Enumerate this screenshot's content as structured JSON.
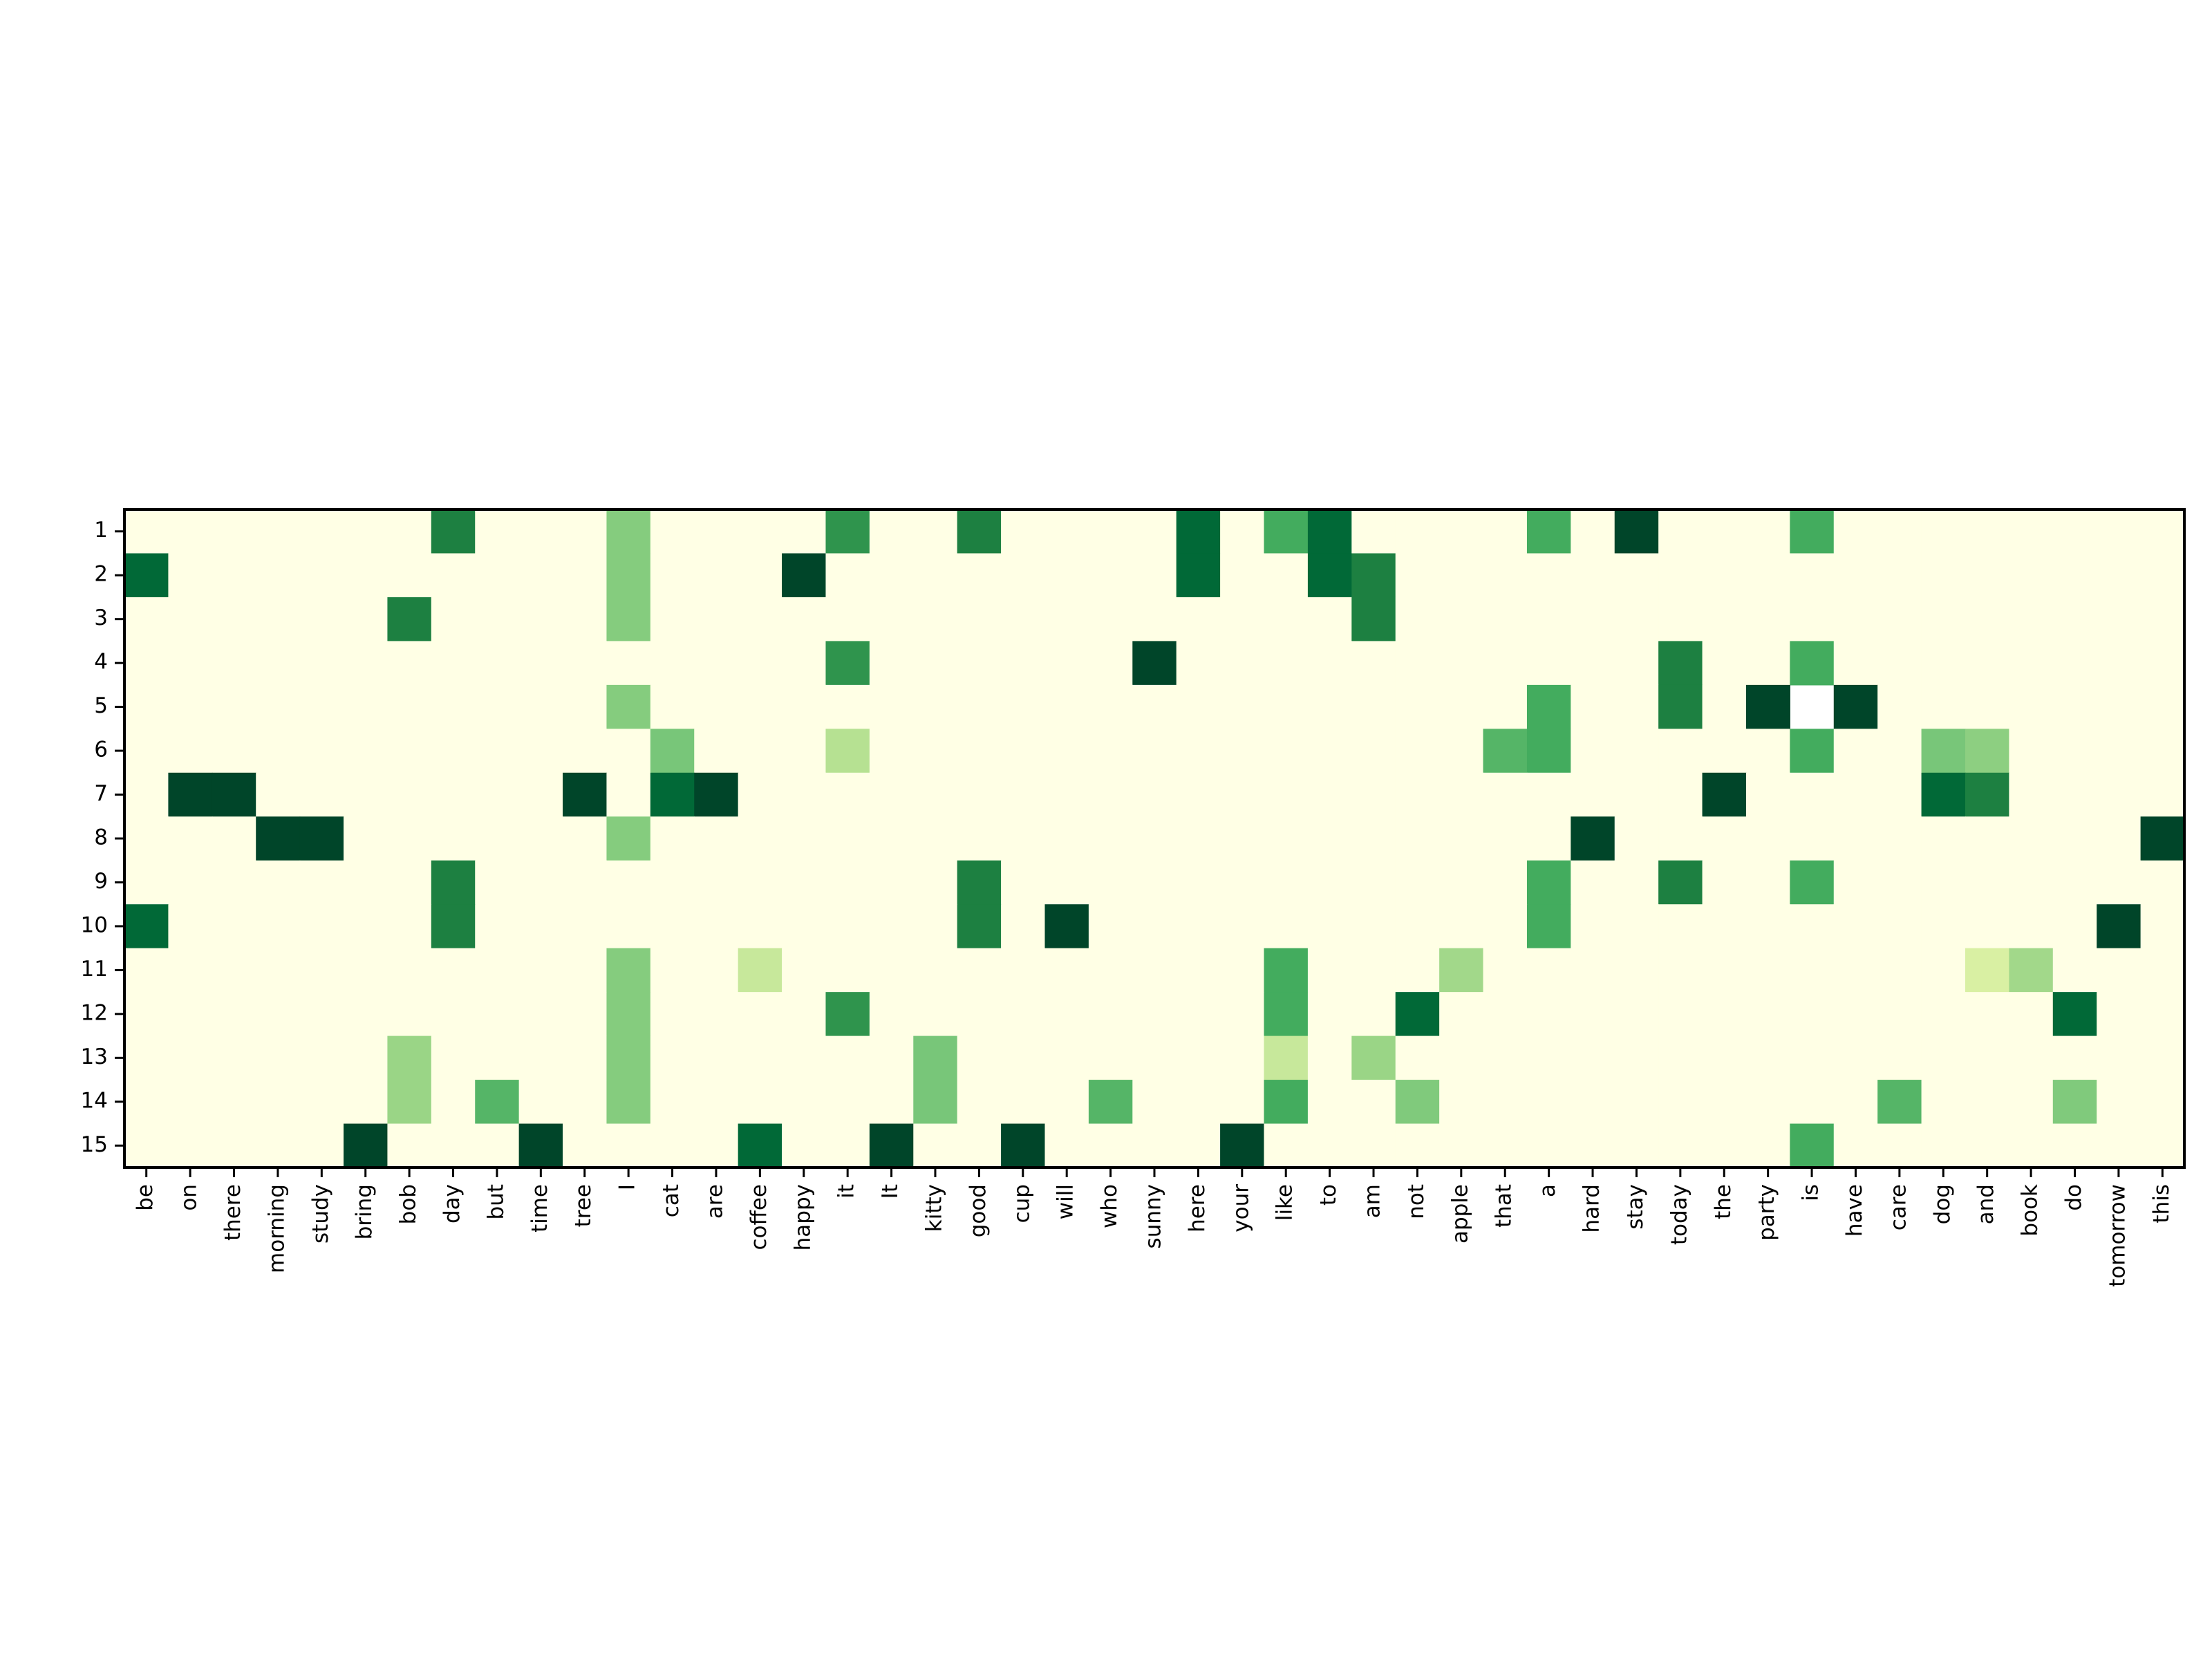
{
  "chart_data": {
    "type": "heatmap",
    "categories": [
      "be",
      "on",
      "there",
      "morning",
      "study",
      "bring",
      "bob",
      "day",
      "but",
      "time",
      "tree",
      "I",
      "cat",
      "are",
      "coffee",
      "happy",
      "it",
      "It",
      "kitty",
      "good",
      "cup",
      "will",
      "who",
      "sunny",
      "here",
      "your",
      "like",
      "to",
      "am",
      "not",
      "apple",
      "that",
      "a",
      "hard",
      "stay",
      "today",
      "the",
      "party",
      "is",
      "have",
      "care",
      "dog",
      "and",
      "book",
      "do",
      "tomorrow",
      "this"
    ],
    "rows": [
      1,
      2,
      3,
      4,
      5,
      6,
      7,
      8,
      9,
      10,
      11,
      12,
      13,
      14,
      15
    ],
    "colormap": "YlGn",
    "colormap_stops": [
      "#ffffe5",
      "#f7fcb9",
      "#d9f0a3",
      "#addd8e",
      "#78c679",
      "#41ab5d",
      "#238443",
      "#006837",
      "#004529"
    ],
    "clim": [
      0,
      1
    ],
    "values": [
      [
        0,
        0,
        0,
        0,
        0,
        0,
        0,
        0.77,
        0,
        0,
        0,
        0.47,
        0,
        0,
        0,
        0,
        0.7,
        0,
        0,
        0.77,
        0,
        0,
        0,
        0,
        0.87,
        0,
        0.62,
        0.87,
        0,
        0,
        0,
        0,
        0.62,
        0,
        1,
        0,
        0,
        0,
        0.62,
        0,
        0,
        0,
        0,
        0,
        0,
        0,
        0
      ],
      [
        0.87,
        0,
        0,
        0,
        0,
        0,
        0,
        0,
        0,
        0,
        0,
        0.47,
        0,
        0,
        0,
        1,
        0,
        0,
        0,
        0,
        0,
        0,
        0,
        0,
        0.87,
        0,
        0,
        0.87,
        0.77,
        0,
        0,
        0,
        0,
        0,
        0,
        0,
        0,
        0,
        0,
        0,
        0,
        0,
        0,
        0,
        0,
        0,
        0
      ],
      [
        0,
        0,
        0,
        0,
        0,
        0,
        0.77,
        0,
        0,
        0,
        0,
        0.47,
        0,
        0,
        0,
        0,
        0,
        0,
        0,
        0,
        0,
        0,
        0,
        0,
        0,
        0,
        0,
        0,
        0.77,
        0,
        0,
        0,
        0,
        0,
        0,
        0,
        0,
        0,
        0,
        0,
        0,
        0,
        0,
        0,
        0,
        0,
        0
      ],
      [
        0,
        0,
        0,
        0,
        0,
        0,
        0,
        0,
        0,
        0,
        0,
        0,
        0,
        0,
        0,
        0,
        0.7,
        0,
        0,
        0,
        0,
        0,
        0,
        1,
        0,
        0,
        0,
        0,
        0,
        0,
        0,
        0,
        0,
        0,
        0,
        0.77,
        0,
        0,
        0.62,
        0,
        0,
        0,
        0,
        0,
        0,
        0,
        0
      ],
      [
        0,
        0,
        0,
        0,
        0,
        0,
        0,
        0,
        0,
        0,
        0,
        0.47,
        0,
        0,
        0,
        0,
        0,
        0,
        0,
        0,
        0,
        0,
        0,
        0,
        0,
        0,
        0,
        0,
        0,
        0,
        0,
        0,
        0.62,
        0,
        0,
        0.77,
        0,
        1,
        null,
        1,
        0,
        0,
        0,
        0,
        0,
        0,
        0
      ],
      [
        0,
        0,
        0,
        0,
        0,
        0,
        0,
        0,
        0,
        0,
        0,
        0,
        0.5,
        0,
        0,
        0,
        0.35,
        0,
        0,
        0,
        0,
        0,
        0,
        0,
        0,
        0,
        0,
        0,
        0,
        0,
        0,
        0.58,
        0.62,
        0,
        0,
        0,
        0,
        0,
        0.62,
        0,
        0,
        0.5,
        0.45,
        0,
        0,
        0,
        0
      ],
      [
        0,
        1,
        1,
        0,
        0,
        0,
        0,
        0,
        0,
        0,
        1,
        0,
        0.87,
        1,
        0,
        0,
        0,
        0,
        0,
        0,
        0,
        0,
        0,
        0,
        0,
        0,
        0,
        0,
        0,
        0,
        0,
        0,
        0,
        0,
        0,
        0,
        1,
        0,
        0,
        0,
        0,
        0.87,
        0.77,
        0,
        0,
        0,
        0
      ],
      [
        0,
        0,
        0,
        1,
        1,
        0,
        0,
        0,
        0,
        0,
        0,
        0.47,
        0,
        0,
        0,
        0,
        0,
        0,
        0,
        0,
        0,
        0,
        0,
        0,
        0,
        0,
        0,
        0,
        0,
        0,
        0,
        0,
        0,
        1,
        0,
        0,
        0,
        0,
        0,
        0,
        0,
        0,
        0,
        0,
        0,
        0,
        1
      ],
      [
        0,
        0,
        0,
        0,
        0,
        0,
        0,
        0.77,
        0,
        0,
        0,
        0,
        0,
        0,
        0,
        0,
        0,
        0,
        0,
        0.77,
        0,
        0,
        0,
        0,
        0,
        0,
        0,
        0,
        0,
        0,
        0,
        0,
        0.62,
        0,
        0,
        0.77,
        0,
        0,
        0.62,
        0,
        0,
        0,
        0,
        0,
        0,
        0,
        0
      ],
      [
        0.87,
        0,
        0,
        0,
        0,
        0,
        0,
        0.77,
        0,
        0,
        0,
        0,
        0,
        0,
        0,
        0,
        0,
        0,
        0,
        0.77,
        0,
        1,
        0,
        0,
        0,
        0,
        0,
        0,
        0,
        0,
        0,
        0,
        0.62,
        0,
        0,
        0,
        0,
        0,
        0,
        0,
        0,
        0,
        0,
        0,
        0,
        1,
        0
      ],
      [
        0,
        0,
        0,
        0,
        0,
        0,
        0,
        0,
        0,
        0,
        0,
        0.47,
        0,
        0,
        0.3,
        0,
        0,
        0,
        0,
        0,
        0,
        0,
        0,
        0,
        0,
        0,
        0.62,
        0,
        0,
        0,
        0.4,
        0,
        0,
        0,
        0,
        0,
        0,
        0,
        0,
        0,
        0,
        0,
        0.25,
        0.4,
        0,
        0,
        0
      ],
      [
        0,
        0,
        0,
        0,
        0,
        0,
        0,
        0,
        0,
        0,
        0,
        0.47,
        0,
        0,
        0,
        0,
        0.7,
        0,
        0,
        0,
        0,
        0,
        0,
        0,
        0,
        0,
        0.62,
        0,
        0,
        0.87,
        0,
        0,
        0,
        0,
        0,
        0,
        0,
        0,
        0,
        0,
        0,
        0,
        0,
        0,
        0.87,
        0,
        0
      ],
      [
        0,
        0,
        0,
        0,
        0,
        0,
        0.42,
        0,
        0,
        0,
        0,
        0.47,
        0,
        0,
        0,
        0,
        0,
        0,
        0.5,
        0,
        0,
        0,
        0,
        0,
        0,
        0,
        0.3,
        0,
        0.42,
        0,
        0,
        0,
        0,
        0,
        0,
        0,
        0,
        0,
        0,
        0,
        0,
        0,
        0,
        0,
        0,
        0,
        0
      ],
      [
        0,
        0,
        0,
        0,
        0,
        0,
        0.42,
        0,
        0.58,
        0,
        0,
        0.47,
        0,
        0,
        0,
        0,
        0,
        0,
        0.5,
        0,
        0,
        0,
        0.58,
        0,
        0,
        0,
        0.62,
        0,
        0,
        0.48,
        0,
        0,
        0,
        0,
        0,
        0,
        0,
        0,
        0,
        0,
        0.58,
        0,
        0,
        0,
        0.48,
        0,
        0
      ],
      [
        0,
        0,
        0,
        0,
        0,
        1,
        0,
        0,
        0,
        1,
        0,
        0,
        0,
        0,
        0.87,
        0,
        0,
        1,
        0,
        0,
        1,
        0,
        0,
        0,
        0,
        1,
        0,
        0,
        0,
        0,
        0,
        0,
        0,
        0,
        0,
        0,
        0,
        0,
        0.62,
        0,
        0,
        0,
        0,
        0,
        0,
        0,
        0
      ]
    ]
  }
}
